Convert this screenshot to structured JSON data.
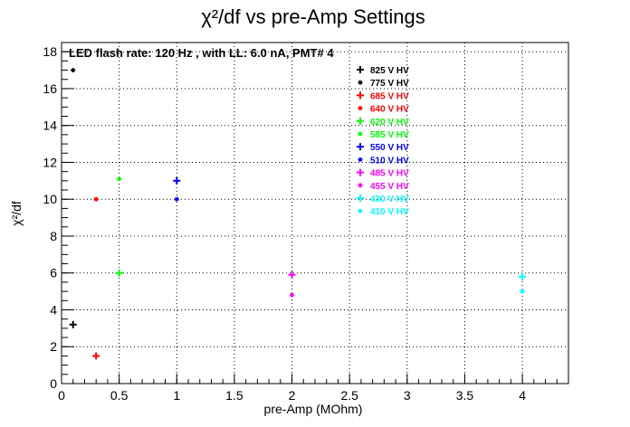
{
  "chart_data": {
    "type": "scatter",
    "title": "χ²/df vs pre-Amp Settings",
    "subtitle": "LED flash rate: 120 Hz , with LL: 6.0 nA, PMT# 4",
    "xlabel": "pre-Amp (MOhm)",
    "ylabel": "χ²/df",
    "xlim": [
      0,
      4.4
    ],
    "ylim": [
      0,
      18.5
    ],
    "xticks": [
      "0",
      "0.5",
      "1",
      "1.5",
      "2",
      "2.5",
      "3",
      "3.5",
      "4"
    ],
    "yticks": [
      "0",
      "2",
      "4",
      "6",
      "8",
      "10",
      "12",
      "14",
      "16",
      "18"
    ],
    "grid": true,
    "legend_position": "top-right",
    "series": [
      {
        "name": "825 V HV",
        "color": "#000000",
        "marker": "plus",
        "points": [
          [
            0.1,
            3.2
          ]
        ]
      },
      {
        "name": "775 V HV",
        "color": "#000000",
        "marker": "star",
        "points": [
          [
            0.1,
            17.0
          ]
        ]
      },
      {
        "name": "685 V HV",
        "color": "#ff0000",
        "marker": "plus",
        "points": [
          [
            0.3,
            1.5
          ]
        ]
      },
      {
        "name": "640 V HV",
        "color": "#ff0000",
        "marker": "star",
        "points": [
          [
            0.3,
            10.0
          ]
        ]
      },
      {
        "name": "620 V HV",
        "color": "#00ff00",
        "marker": "plus",
        "points": [
          [
            0.5,
            6.0
          ]
        ]
      },
      {
        "name": "585 V HV",
        "color": "#00ff00",
        "marker": "star",
        "points": [
          [
            0.5,
            11.1
          ]
        ]
      },
      {
        "name": "550 V HV",
        "color": "#0000ff",
        "marker": "plus",
        "points": [
          [
            1.0,
            11.0
          ]
        ]
      },
      {
        "name": "510 V HV",
        "color": "#0000ff",
        "marker": "star",
        "points": [
          [
            1.0,
            10.0
          ]
        ]
      },
      {
        "name": "485 V HV",
        "color": "#ff00ff",
        "marker": "plus",
        "points": [
          [
            2.0,
            5.9
          ]
        ]
      },
      {
        "name": "455 V HV",
        "color": "#ff00ff",
        "marker": "star",
        "points": [
          [
            2.0,
            4.8
          ]
        ]
      },
      {
        "name": "430 V HV",
        "color": "#00ffff",
        "marker": "plus",
        "points": [
          [
            4.0,
            5.8
          ]
        ]
      },
      {
        "name": "410 V HV",
        "color": "#00ffff",
        "marker": "star",
        "points": [
          [
            4.0,
            5.0
          ]
        ]
      }
    ]
  }
}
